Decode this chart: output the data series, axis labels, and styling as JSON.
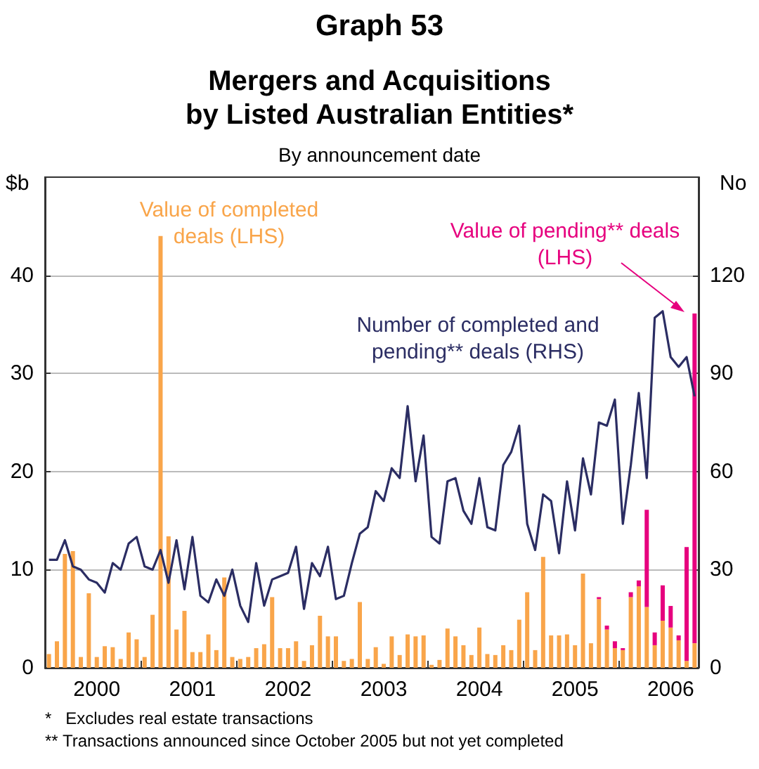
{
  "chart_data": {
    "type": "bar",
    "title": "Graph 53",
    "subtitle": "Mergers and Acquisitions\nby Listed Australian Entities*",
    "ylabel": "$b",
    "y2label": "No",
    "annotations": [
      "By announcement date",
      "*   Excludes real estate transactions",
      "** Transactions announced since October 2005 but not yet completed"
    ],
    "categories": [
      null,
      null,
      null,
      null,
      null,
      null,
      "2000",
      null,
      null,
      null,
      null,
      null,
      null,
      null,
      null,
      null,
      null,
      null,
      "2001",
      null,
      null,
      null,
      null,
      null,
      null,
      null,
      null,
      null,
      null,
      null,
      "2002",
      null,
      null,
      null,
      null,
      null,
      null,
      null,
      null,
      null,
      null,
      null,
      "2003",
      null,
      null,
      null,
      null,
      null,
      null,
      null,
      null,
      null,
      null,
      null,
      "2004",
      null,
      null,
      null,
      null,
      null,
      null,
      null,
      null,
      null,
      null,
      null,
      "2005",
      null,
      null,
      null,
      null,
      null,
      null,
      null,
      null,
      null,
      null,
      null,
      "2006",
      null,
      null,
      null
    ],
    "stacked": true,
    "grid": "y",
    "legend": false,
    "marker": "none",
    "line_style": "solid",
    "ylim": [
      0,
      50
    ],
    "yticks": [
      0,
      10,
      20,
      30,
      40
    ],
    "y2lim": [
      0,
      150
    ],
    "y2ticks": [
      0,
      30,
      60,
      90,
      120
    ],
    "series": [
      {
        "name": "Value of completed\ndeals (LHS)",
        "color": "#f9a54a",
        "values": [
          1.4,
          2.7,
          11.6,
          11.9,
          1.1,
          7.6,
          1.1,
          2.2,
          2.1,
          0.9,
          3.6,
          2.9,
          1.1,
          5.4,
          44.0,
          13.4,
          3.9,
          5.8,
          1.6,
          1.6,
          3.4,
          1.8,
          9.2,
          1.1,
          0.9,
          1.1,
          2.0,
          2.4,
          7.2,
          2.0,
          2.0,
          2.7,
          0.7,
          2.3,
          5.3,
          3.2,
          3.2,
          0.7,
          0.9,
          6.7,
          0.9,
          2.1,
          0.4,
          3.2,
          1.3,
          3.4,
          3.2,
          3.3,
          0.3,
          0.8,
          4.0,
          3.2,
          2.3,
          1.3,
          4.1,
          1.4,
          1.3,
          2.3,
          1.8,
          4.9,
          7.7,
          1.8,
          11.3,
          3.3,
          3.3,
          3.4,
          2.3,
          9.6,
          2.5,
          7.0,
          3.9,
          2.0,
          1.8,
          7.2,
          8.3,
          6.2,
          2.3,
          4.8,
          4.1,
          2.8,
          0.7,
          2.5
        ]
      },
      {
        "name": "Value of pending** deals\n(LHS)",
        "color": "#e6007e",
        "values": [
          null,
          null,
          null,
          null,
          null,
          null,
          null,
          null,
          null,
          null,
          null,
          null,
          null,
          null,
          null,
          null,
          null,
          null,
          null,
          null,
          null,
          null,
          null,
          null,
          null,
          null,
          null,
          null,
          null,
          null,
          null,
          null,
          null,
          null,
          null,
          null,
          null,
          null,
          null,
          null,
          null,
          null,
          null,
          null,
          null,
          null,
          null,
          null,
          null,
          null,
          null,
          null,
          null,
          null,
          null,
          null,
          null,
          null,
          null,
          null,
          null,
          null,
          null,
          null,
          null,
          null,
          null,
          null,
          null,
          0.2,
          0.4,
          0.7,
          0.2,
          0.5,
          0.6,
          9.9,
          1.3,
          3.6,
          2.2,
          0.5,
          11.6,
          33.6
        ]
      },
      {
        "name": "Number of completed and\npending** deals (RHS)",
        "type": "line",
        "axis": "y2",
        "color": "#2b2d63",
        "values": [
          33,
          33,
          39,
          31,
          30,
          27,
          26,
          23,
          32,
          30,
          38,
          40,
          31,
          30,
          36,
          26,
          39,
          24,
          40,
          22,
          20,
          27,
          22,
          30,
          19,
          14,
          32,
          19,
          27,
          28,
          29,
          37,
          18,
          32,
          28,
          37,
          21,
          22,
          32,
          41,
          43,
          54,
          51,
          61,
          58,
          80,
          57,
          71,
          40,
          38,
          57,
          58,
          48,
          44,
          58,
          43,
          42,
          62,
          66,
          74,
          44,
          36,
          53,
          51,
          35,
          57,
          42,
          64,
          53,
          75,
          74,
          82,
          44,
          62,
          84,
          58,
          107,
          109,
          95,
          92,
          95,
          83
        ]
      }
    ]
  }
}
